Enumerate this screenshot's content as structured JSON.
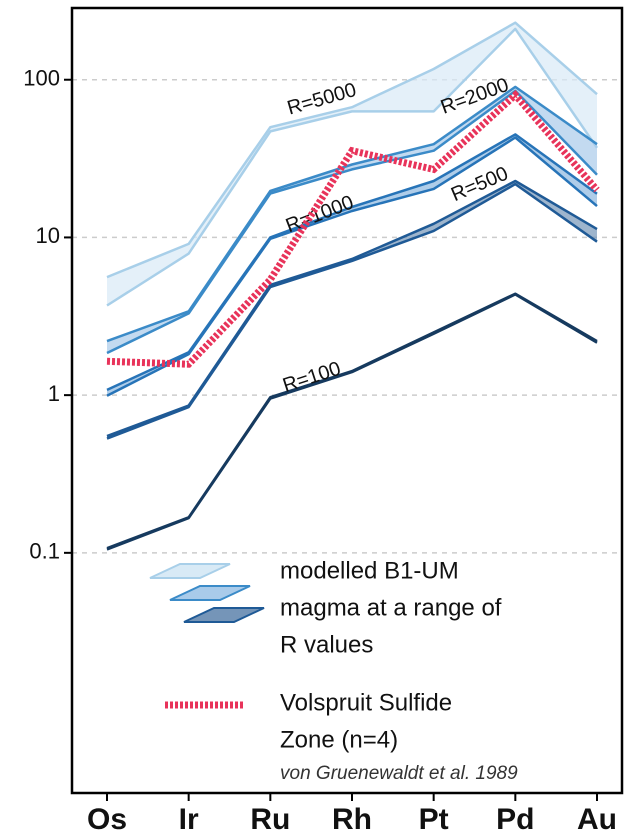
{
  "chart_data": {
    "type": "band-line",
    "log_y": true,
    "grid": true,
    "categories": [
      "Os",
      "Ir",
      "Ru",
      "Rh",
      "Pt",
      "Pd",
      "Au"
    ],
    "ylim": [
      0.003,
      285
    ],
    "yticks": [
      0.1,
      1,
      10,
      100
    ],
    "bands": [
      {
        "name": "R=5000",
        "color": "#a8cfe9",
        "fill": "#d8eaf6",
        "upper": [
          5.6,
          9.1,
          50,
          67,
          117,
          230,
          81
        ],
        "lower": [
          3.7,
          7.9,
          47,
          63,
          63,
          210,
          37
        ]
      },
      {
        "name": "R=2000",
        "color": "#3b8bc8",
        "fill": "#a9cbea",
        "upper": [
          2.2,
          3.4,
          19.7,
          29,
          39,
          90,
          39
        ],
        "lower": [
          1.85,
          3.3,
          19,
          27,
          35.5,
          85,
          25
        ]
      },
      {
        "name": "R=1000",
        "color": "#2774b8",
        "fill": "#8db8df",
        "upper": [
          1.08,
          1.87,
          10,
          15.6,
          22.8,
          45,
          18.9
        ],
        "lower": [
          0.99,
          1.82,
          9.8,
          14.7,
          20.3,
          43,
          15.8
        ]
      },
      {
        "name": "R=500",
        "color": "#1f5a96",
        "fill": "#7595b8",
        "upper": [
          0.55,
          0.86,
          5,
          7.3,
          12.2,
          22.8,
          11.3
        ],
        "lower": [
          0.53,
          0.84,
          4.85,
          7.1,
          11,
          21.8,
          9.4
        ]
      },
      {
        "name": "R=100",
        "color": "#163a5f",
        "fill": "#8a9db2",
        "upper": [
          0.107,
          0.168,
          0.97,
          1.42,
          2.5,
          4.4,
          2.2
        ],
        "lower": [
          0.105,
          0.166,
          0.95,
          1.4,
          2.45,
          4.35,
          2.15
        ]
      }
    ],
    "series": [
      {
        "name": "Volspruit Sulfide Zone (n=4)",
        "color": "#e8335a",
        "values": [
          1.64,
          1.57,
          5.4,
          35.5,
          27,
          80,
          20
        ]
      }
    ],
    "legend": {
      "bands_text": [
        "modelled B1-UM",
        "magma at a range of",
        "R values"
      ],
      "line_text": [
        "Volspruit Sulfide",
        "Zone (n=4)"
      ],
      "citation": "von Gruenewaldt et al. 1989"
    }
  }
}
